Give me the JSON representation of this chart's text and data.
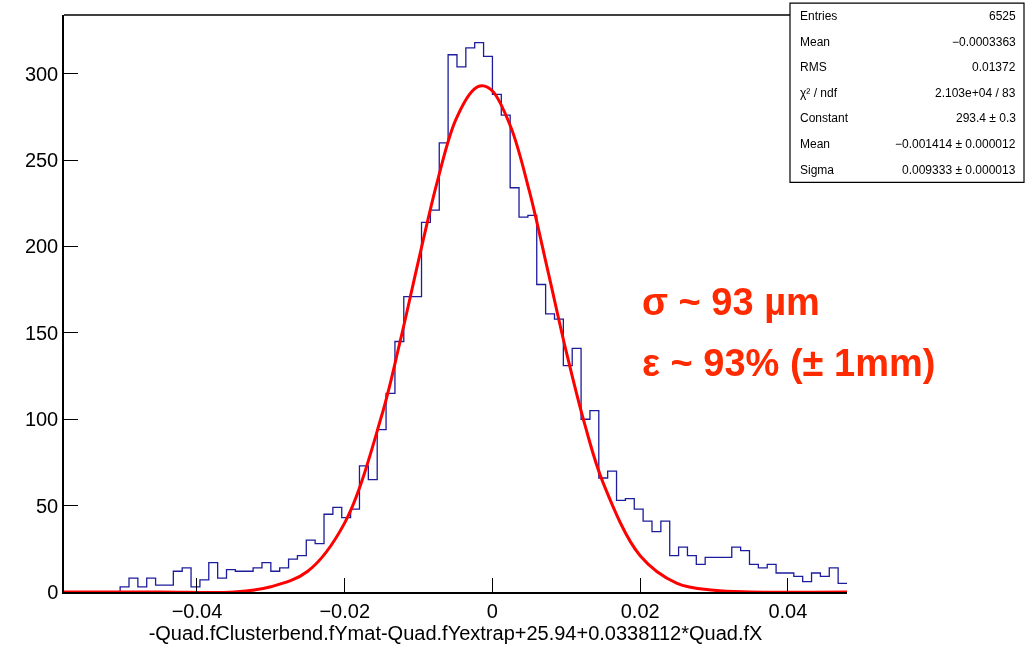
{
  "chart_data": {
    "type": "histogram",
    "xlabel": "-Quad.fClusterbend.fYmat-Quad.fYextrap+25.94+0.0338112*Quad.fX",
    "bins": [
      -0.0504,
      -0.0492,
      -0.048,
      -0.0468,
      -0.0456,
      -0.0444,
      -0.0432,
      -0.042,
      -0.0408,
      -0.0396,
      -0.0384,
      -0.0372,
      -0.036,
      -0.0348,
      -0.0336,
      -0.0324,
      -0.0312,
      -0.03,
      -0.0288,
      -0.0276,
      -0.0264,
      -0.0252,
      -0.024,
      -0.0228,
      -0.0216,
      -0.0204,
      -0.0192,
      -0.018,
      -0.0168,
      -0.0156,
      -0.0144,
      -0.0132,
      -0.012,
      -0.0108,
      -0.0096,
      -0.0084,
      -0.0072,
      -0.006,
      -0.0048,
      -0.0036,
      -0.0024,
      -0.0012,
      0,
      0.0012,
      0.0024,
      0.0036,
      0.0048,
      0.006,
      0.0072,
      0.0084,
      0.0096,
      0.0108,
      0.012,
      0.0132,
      0.0144,
      0.0156,
      0.0168,
      0.018,
      0.0192,
      0.0204,
      0.0216,
      0.0228,
      0.024,
      0.0252,
      0.0264,
      0.0276,
      0.0288,
      0.03,
      0.0312,
      0.0324,
      0.0336,
      0.0348,
      0.036,
      0.0372,
      0.0384,
      0.0396,
      0.0408,
      0.042,
      0.0432,
      0.0444,
      0.0456,
      0.0468,
      0.048
    ],
    "values": [
      3,
      8,
      3,
      8,
      4,
      4,
      12,
      14,
      3,
      7,
      17,
      8,
      13,
      12,
      12,
      14,
      17,
      12,
      14,
      19,
      21,
      30,
      28,
      45,
      49,
      43,
      48,
      73,
      65,
      94,
      115,
      145,
      171,
      171,
      214,
      221,
      260,
      311,
      304,
      315,
      318,
      310,
      288,
      276,
      234,
      217,
      218,
      178,
      161,
      158,
      131,
      141,
      100,
      105,
      66,
      70,
      53,
      54,
      48,
      41,
      35,
      41,
      21,
      26,
      21,
      16,
      20,
      20,
      20,
      26,
      24,
      16,
      14,
      16,
      11,
      11,
      9,
      6,
      11,
      9,
      14,
      5
    ],
    "color": "#1c1c9c",
    "series": [
      {
        "type": "line",
        "color": "#ff0000",
        "x": [
          -0.058,
          -0.045,
          -0.035,
          -0.03,
          -0.025,
          -0.02,
          -0.015,
          -0.0125,
          -0.01,
          -0.0075,
          -0.005,
          -0.0025,
          -0.0014,
          0,
          0.0025,
          0.005,
          0.0075,
          0.01,
          0.0125,
          0.015,
          0.02,
          0.025,
          0.03,
          0.035,
          0.048
        ],
        "values": [
          0,
          0,
          0,
          3,
          12,
          40,
          102,
          145,
          192,
          237,
          273,
          291,
          293,
          290,
          269,
          232,
          186,
          139,
          97,
          63,
          21,
          5,
          1,
          0,
          0
        ]
      }
    ],
    "xlim": [
      -0.058,
      0.048
    ],
    "xticks": [
      -0.04,
      -0.02,
      0,
      0.02,
      0.04
    ],
    "ylim": [
      0,
      334
    ],
    "yticks": [
      0,
      50,
      100,
      150,
      200,
      250,
      300
    ],
    "annotations": [
      "Entries",
      "6525",
      "Mean",
      "−0.0003363",
      "RMS",
      "0.01372",
      "χ² / ndf",
      "2.103e+04 / 83",
      "Constant",
      "293.4 ± 0.3",
      "Mean",
      "−0.001414 ± 0.000012",
      "Sigma",
      "0.009333 ± 0.000013",
      "σ ~ 93 µm",
      "ε ~ 93% (± 1mm)"
    ]
  }
}
